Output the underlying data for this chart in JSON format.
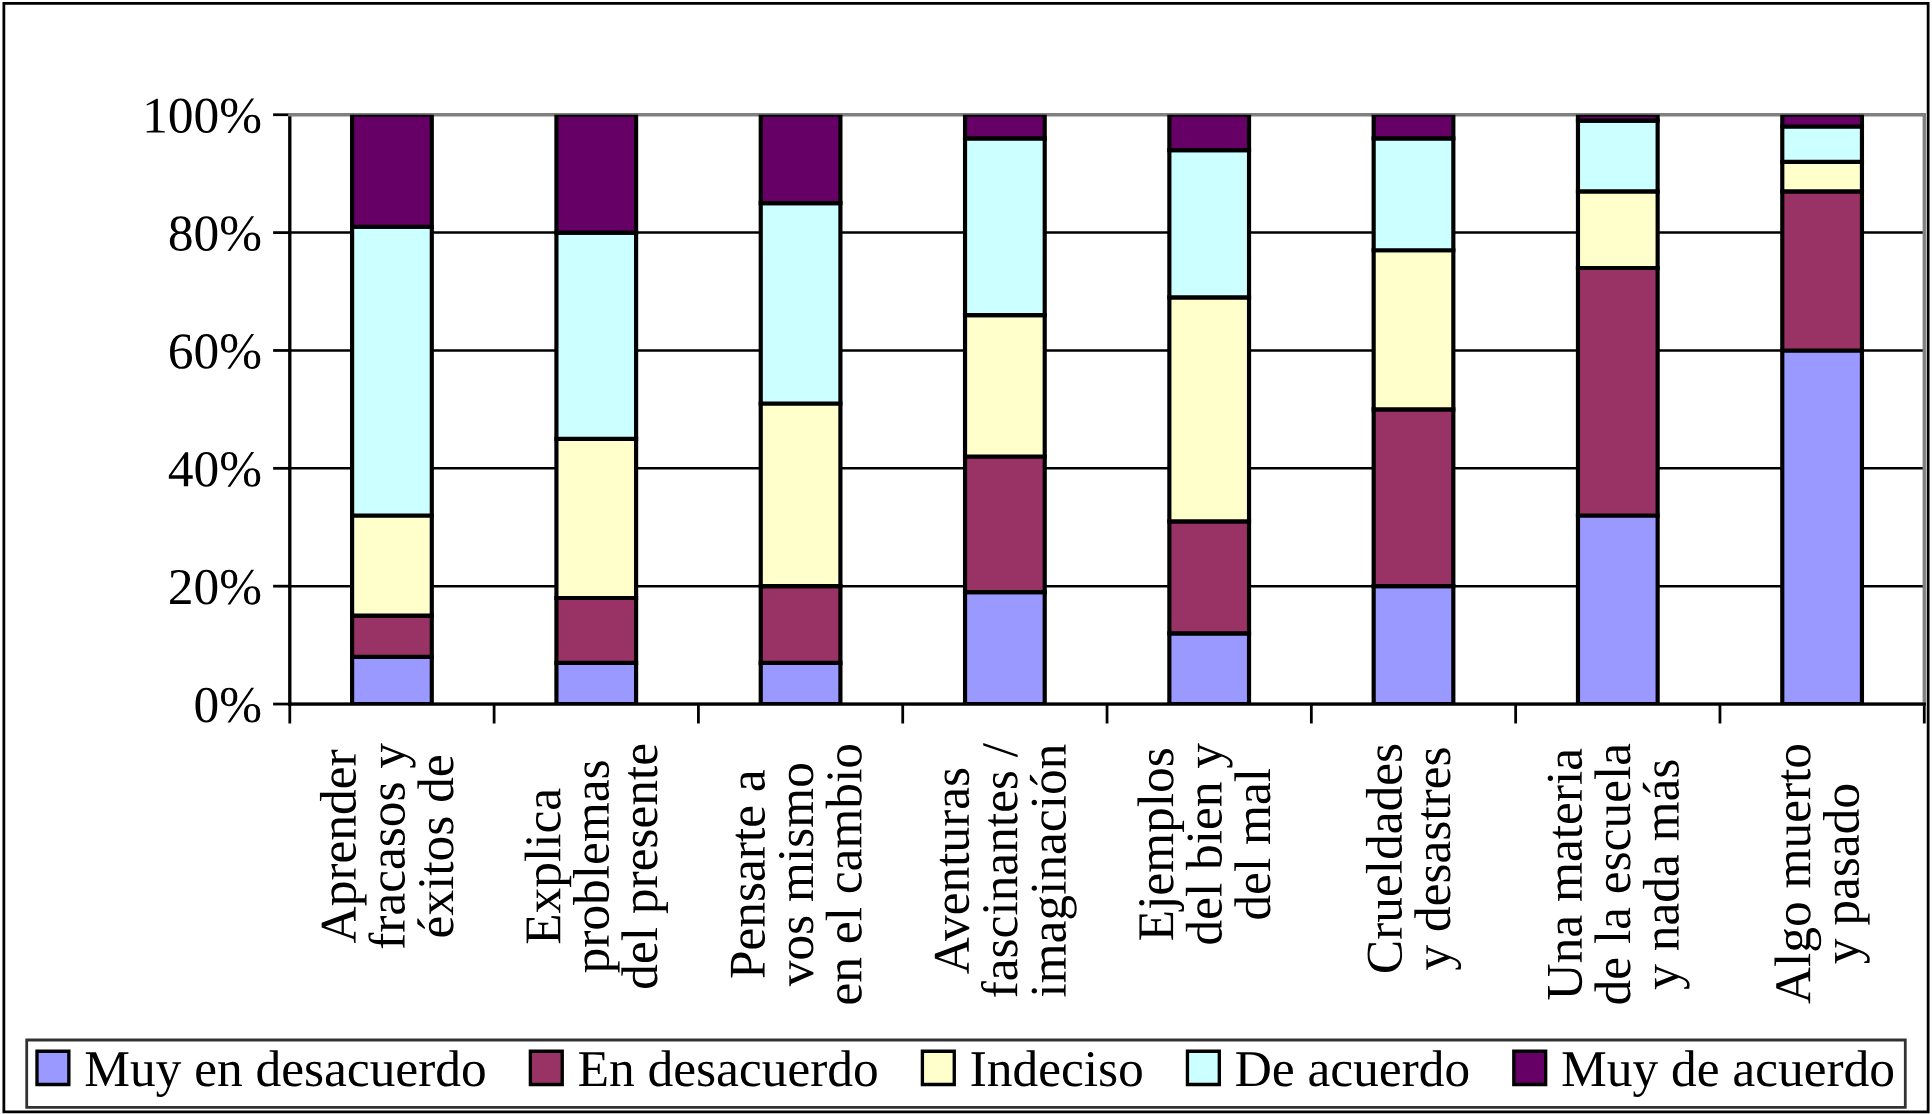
{
  "chart_data": {
    "type": "bar",
    "stacked": true,
    "categories": [
      "Aprender\nfracasos y\néxitos de",
      "Explica\nproblemas\ndel presente",
      "Pensarte a\nvos mismo\nen el cambio",
      "Aventuras\nfascinantes /\nimaginación",
      "Ejemplos\ndel bien y\ndel mal",
      "Crueldades\ny desastres",
      "Una materia\nde la escuela\ny nada más",
      "Algo muerto\ny pasado"
    ],
    "series": [
      {
        "name": "Muy en desacuerdo",
        "color": "#9999ff",
        "values": [
          8,
          7,
          7,
          19,
          12,
          20,
          32,
          60
        ]
      },
      {
        "name": "En desacuerdo",
        "color": "#993366",
        "values": [
          7,
          11,
          13,
          23,
          19,
          30,
          42,
          27
        ]
      },
      {
        "name": "Indeciso",
        "color": "#ffffcc",
        "values": [
          17,
          27,
          31,
          24,
          38,
          27,
          13,
          5
        ]
      },
      {
        "name": "De acuerdo",
        "color": "#ccffff",
        "values": [
          49,
          35,
          34,
          30,
          25,
          19,
          12,
          6
        ]
      },
      {
        "name": "Muy de acuerdo",
        "color": "#660066",
        "values": [
          19,
          20,
          15,
          4,
          6,
          4,
          1,
          2
        ]
      }
    ],
    "ylim": [
      0,
      100
    ],
    "yticks": [
      {
        "value": 0,
        "label": "0%"
      },
      {
        "value": 20,
        "label": "20%"
      },
      {
        "value": 40,
        "label": "40%"
      },
      {
        "value": 60,
        "label": "60%"
      },
      {
        "value": 80,
        "label": "80%"
      },
      {
        "value": 100,
        "label": "100%"
      }
    ],
    "grid": "y",
    "legend": "bottom"
  }
}
